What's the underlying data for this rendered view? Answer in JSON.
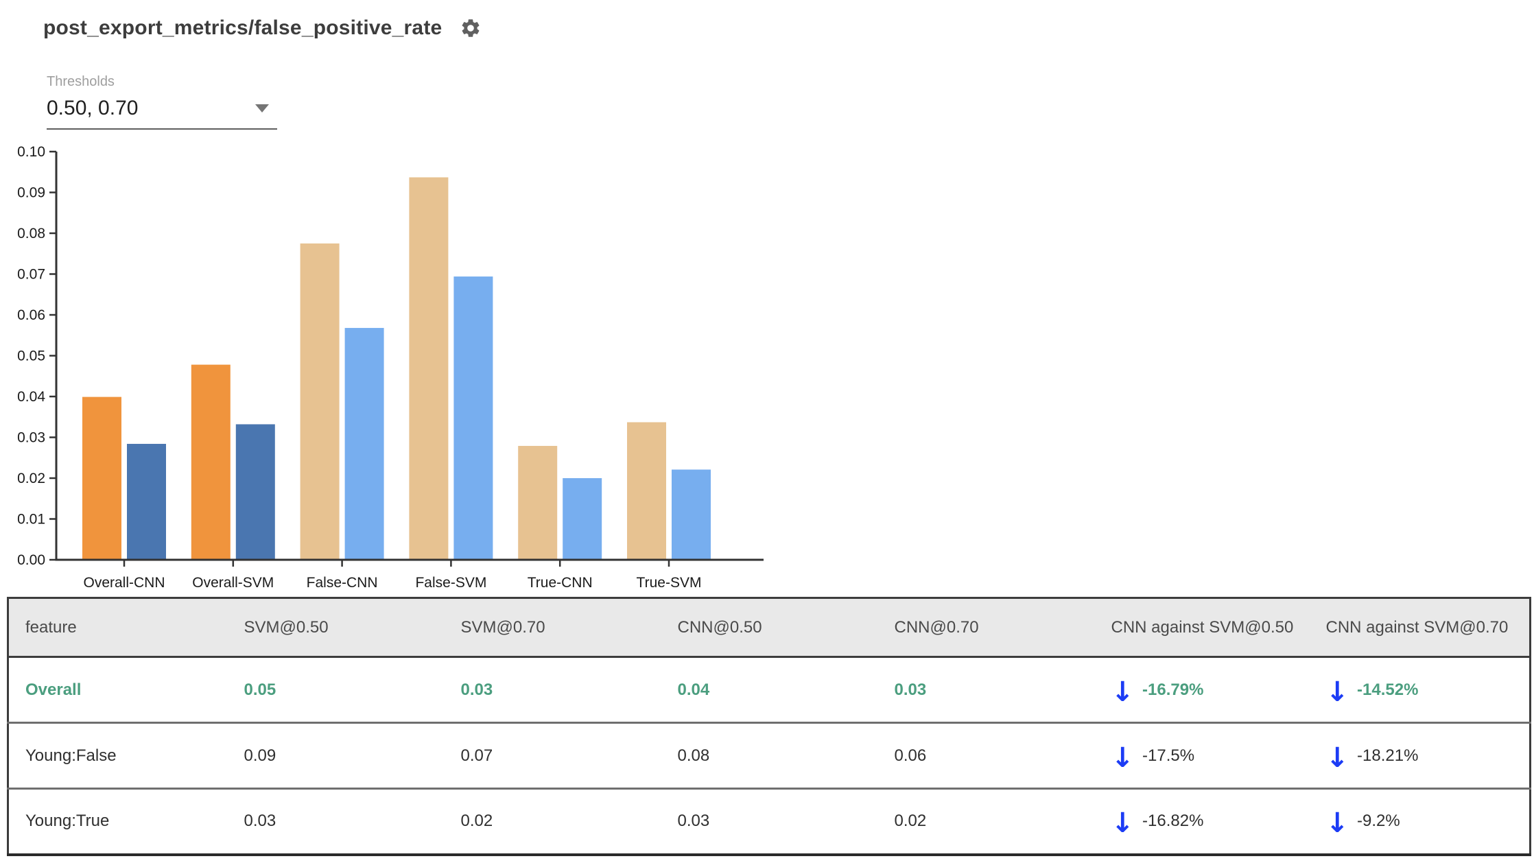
{
  "title": "post_export_metrics/false_positive_rate",
  "controls": {
    "thresholds_label": "Thresholds",
    "thresholds_value": "0.50, 0.70"
  },
  "glyphs": {
    "down_arrow": "↓"
  },
  "colors": {
    "accent-green": "#4b9e7f",
    "arrow-blue": "#1c3cf5",
    "header-bg": "#e9e9e9",
    "header-text": "#4a4a4a",
    "body-text": "#2f2f2f",
    "muted-label": "#9e9e9e",
    "axis": "#333333"
  },
  "chart_data": {
    "type": "bar",
    "title": "post_export_metrics/false_positive_rate",
    "categories": [
      "Overall-CNN",
      "Overall-SVM",
      "False-CNN",
      "False-SVM",
      "True-CNN",
      "True-SVM"
    ],
    "series": [
      {
        "name": "0.50",
        "values": [
          0.0399,
          0.0478,
          0.0775,
          0.0937,
          0.0279,
          0.0337
        ]
      },
      {
        "name": "0.70",
        "values": [
          0.0284,
          0.0332,
          0.0568,
          0.0694,
          0.02,
          0.0221
        ]
      }
    ],
    "category_colors": [
      {
        "t50": "#f0943d",
        "t70": "#4a76b0"
      },
      {
        "t50": "#f0943d",
        "t70": "#4a76b0"
      },
      {
        "t50": "#e7c291",
        "t70": "#77aeef"
      },
      {
        "t50": "#e7c291",
        "t70": "#77aeef"
      },
      {
        "t50": "#e7c291",
        "t70": "#77aeef"
      },
      {
        "t50": "#e7c291",
        "t70": "#77aeef"
      }
    ],
    "xlabel": "",
    "ylabel": "",
    "ylim": [
      0,
      0.1
    ],
    "ytick_step": 0.01,
    "ytick_decimals": 2,
    "grid": false,
    "legend": "none"
  },
  "table": {
    "columns": [
      "feature",
      "SVM@0.50",
      "SVM@0.70",
      "CNN@0.50",
      "CNN@0.70",
      "CNN against SVM@0.50",
      "CNN against SVM@0.70"
    ],
    "rows": [
      {
        "feature": "Overall",
        "svm50": "0.05",
        "svm70": "0.03",
        "cnn50": "0.04",
        "cnn70": "0.03",
        "delta50": "-16.79%",
        "delta70": "-14.52%"
      },
      {
        "feature": "Young:False",
        "svm50": "0.09",
        "svm70": "0.07",
        "cnn50": "0.08",
        "cnn70": "0.06",
        "delta50": "-17.5%",
        "delta70": "-18.21%"
      },
      {
        "feature": "Young:True",
        "svm50": "0.03",
        "svm70": "0.02",
        "cnn50": "0.03",
        "cnn70": "0.02",
        "delta50": "-16.82%",
        "delta70": "-9.2%"
      }
    ]
  }
}
